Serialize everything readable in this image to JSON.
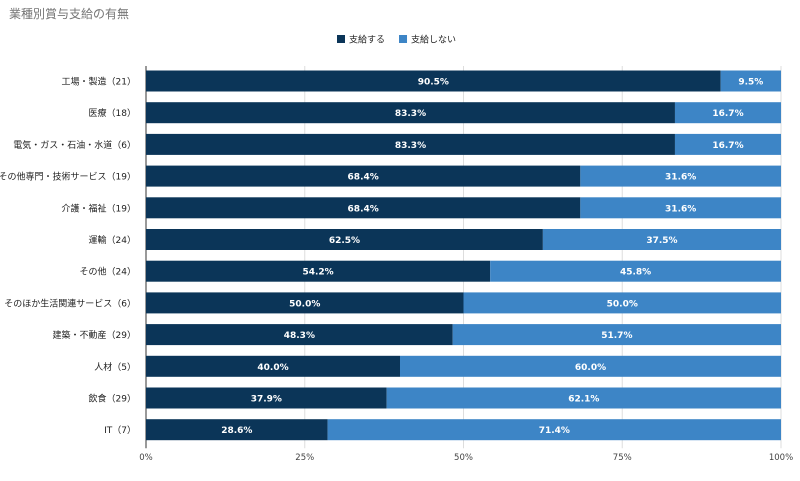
{
  "chart_data": {
    "type": "bar",
    "orientation": "horizontal",
    "stacked": true,
    "title": "業種別賞与支給の有無",
    "categories": [
      "工場・製造（21）",
      "医療（18）",
      "電気・ガス・石油・水道（6）",
      "その他専門・技術サービス（19）",
      "介護・福祉（19）",
      "運輸（24）",
      "その他（24）",
      "そのほか生活関連サービス（6）",
      "建築・不動産（29）",
      "人材（5）",
      "飲食（29）",
      "IT（7）"
    ],
    "series": [
      {
        "name": "支給する",
        "color": "#0b3558",
        "values": [
          90.5,
          83.3,
          83.3,
          68.4,
          68.4,
          62.5,
          54.2,
          50.0,
          48.3,
          40.0,
          37.9,
          28.6
        ],
        "labels": [
          "90.5%",
          "83.3%",
          "83.3%",
          "68.4%",
          "68.4%",
          "62.5%",
          "54.2%",
          "50.0%",
          "48.3%",
          "40.0%",
          "37.9%",
          "28.6%"
        ]
      },
      {
        "name": "支給しない",
        "color": "#3d85c6",
        "values": [
          9.5,
          16.7,
          16.7,
          31.6,
          31.6,
          37.5,
          45.8,
          50.0,
          51.7,
          60.0,
          62.1,
          71.4
        ],
        "labels": [
          "9.5%",
          "16.7%",
          "16.7%",
          "31.6%",
          "31.6%",
          "37.5%",
          "45.8%",
          "50.0%",
          "51.7%",
          "60.0%",
          "62.1%",
          "71.4%"
        ]
      }
    ],
    "xlim": [
      0,
      100
    ],
    "xticks": [
      0,
      25,
      50,
      75,
      100
    ],
    "xtick_labels": [
      "0%",
      "25%",
      "50%",
      "75%",
      "100%"
    ],
    "grid": true,
    "legend_position": "top-center"
  }
}
